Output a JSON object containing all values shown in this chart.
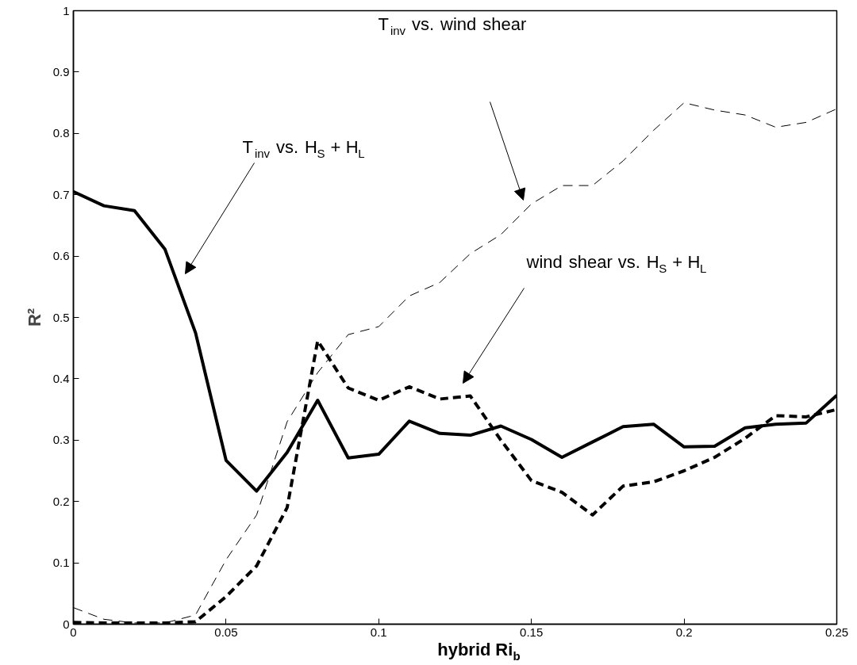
{
  "chart_data": {
    "type": "line",
    "xlabel": "hybrid Ri$_{b}$",
    "ylabel": "R²",
    "x": [
      0,
      0.01,
      0.02,
      0.03,
      0.04,
      0.05,
      0.06,
      0.07,
      0.08,
      0.09,
      0.1,
      0.11,
      0.12,
      0.13,
      0.14,
      0.15,
      0.16,
      0.17,
      0.18,
      0.19,
      0.2,
      0.21,
      0.22,
      0.23,
      0.24,
      0.25
    ],
    "series": [
      {
        "color": "#000000",
        "line_style": "solid",
        "values": [
          0.705,
          0.682,
          0.674,
          0.611,
          0.475,
          0.267,
          0.217,
          0.28,
          0.365,
          0.271,
          0.277,
          0.331,
          0.311,
          0.308,
          0.323,
          0.301,
          0.272,
          0.297,
          0.322,
          0.326,
          0.289,
          0.29,
          0.32,
          0.326,
          0.328,
          0.373
        ]
      },
      {
        "color": "#000000",
        "line_style": "dashed",
        "values": [
          0.003,
          0.002,
          0.002,
          0.002,
          0.004,
          0.045,
          0.095,
          0.19,
          0.462,
          0.385,
          0.365,
          0.387,
          0.367,
          0.372,
          0.3,
          0.234,
          0.215,
          0.178,
          0.225,
          0.232,
          0.25,
          0.272,
          0.303,
          0.34,
          0.338,
          0.35
        ]
      },
      {
        "color": "#000000",
        "line_style": "dashed",
        "values": [
          0.027,
          0.008,
          0.002,
          0.002,
          0.015,
          0.105,
          0.178,
          0.33,
          0.41,
          0.472,
          0.485,
          0.535,
          0.557,
          0.604,
          0.635,
          0.685,
          0.715,
          0.715,
          0.755,
          0.805,
          0.85,
          0.838,
          0.83,
          0.81,
          0.818,
          0.84
        ]
      }
    ],
    "annotations": [
      "T$_{inv}$ vs. H$_{S}$ + H$_{L}$",
      "T$_{inv}$ vs. wind shear",
      "wind shear vs. H$_{S}$ + H$_{L}$"
    ],
    "xlim": [
      0,
      0.25
    ],
    "xticks": [
      0,
      0.05,
      0.1,
      0.15,
      0.2,
      0.25
    ],
    "ylim": [
      0,
      1
    ],
    "yticks": [
      0,
      0.1,
      0.2,
      0.3,
      0.4,
      0.5,
      0.6,
      0.7,
      0.8,
      0.9,
      1
    ],
    "grid": false
  }
}
